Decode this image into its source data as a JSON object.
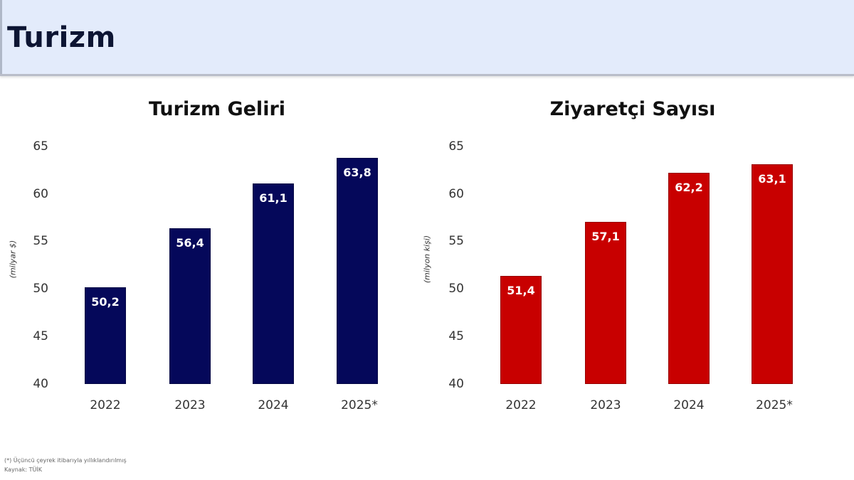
{
  "header": {
    "title": "Turizm"
  },
  "colors": {
    "header_bg": "#e3ebfb",
    "left_bar": "#05085a",
    "right_bar": "#c80000"
  },
  "chart_data": [
    {
      "type": "bar",
      "title": "Turizm Geliri",
      "categories": [
        "2022",
        "2023",
        "2024",
        "2025*"
      ],
      "values": [
        50.2,
        56.4,
        61.1,
        63.8
      ],
      "value_labels": [
        "50,2",
        "56,4",
        "61,1",
        "63,8"
      ],
      "xlabel": "",
      "ylabel": "(milyar $)",
      "ylim": [
        40,
        65
      ],
      "yticks": [
        "65",
        "60",
        "55",
        "50",
        "45",
        "40"
      ],
      "grid": false,
      "color": "#05085a"
    },
    {
      "type": "bar",
      "title": "Ziyaretçi Sayısı",
      "categories": [
        "2022",
        "2023",
        "2024",
        "2025*"
      ],
      "values": [
        51.4,
        57.1,
        62.2,
        63.1
      ],
      "value_labels": [
        "51,4",
        "57,1",
        "62,2",
        "63,1"
      ],
      "xlabel": "",
      "ylabel": "(milyon kişi)",
      "ylim": [
        40,
        65
      ],
      "yticks": [
        "65",
        "60",
        "55",
        "50",
        "45",
        "40"
      ],
      "grid": false,
      "color": "#c80000"
    }
  ],
  "footnotes": {
    "note": "(*) Üçüncü çeyrek itibarıyla yıllıklandırılmış",
    "source": "Kaynak: TÜİK"
  }
}
